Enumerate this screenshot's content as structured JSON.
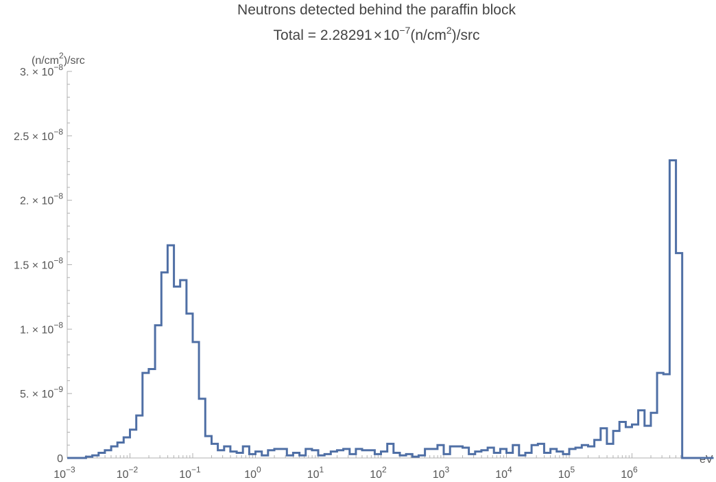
{
  "chart_data": {
    "type": "histogram",
    "title": "Neutrons detected behind the paraffin block",
    "subtitle": {
      "prefix": "Total = 2.28291",
      "times": "×",
      "base": "10",
      "exponent": "−7",
      "unit_a": "(n/cm",
      "unit_sup": "2",
      "unit_b": ")/src"
    },
    "xlabel": "eV",
    "ylabel": {
      "a": "(n/cm",
      "sup": "2",
      "b": ")/src"
    },
    "x_scale": "log",
    "xlim_log10": [
      -3,
      6.8
    ],
    "ylim": [
      0,
      3e-08
    ],
    "x_ticks": [
      {
        "base": "10",
        "exp": "−3",
        "log": -3
      },
      {
        "base": "10",
        "exp": "−2",
        "log": -2
      },
      {
        "base": "10",
        "exp": "−1",
        "log": -1
      },
      {
        "base": "10",
        "exp": "0",
        "log": 0
      },
      {
        "base": "10",
        "exp": "1",
        "log": 1
      },
      {
        "base": "10",
        "exp": "2",
        "log": 2
      },
      {
        "base": "10",
        "exp": "3",
        "log": 3
      },
      {
        "base": "10",
        "exp": "4",
        "log": 4
      },
      {
        "base": "10",
        "exp": "5",
        "log": 5
      },
      {
        "base": "10",
        "exp": "6",
        "log": 6
      }
    ],
    "y_ticks": [
      {
        "value": 0,
        "mant": "0",
        "exp": ""
      },
      {
        "value": 5e-09,
        "mant": "5. × 10",
        "exp": "−9"
      },
      {
        "value": 1e-08,
        "mant": "1. × 10",
        "exp": "−8"
      },
      {
        "value": 1.5e-08,
        "mant": "1.5 × 10",
        "exp": "−8"
      },
      {
        "value": 2e-08,
        "mant": "2. × 10",
        "exp": "−8"
      },
      {
        "value": 2.5e-08,
        "mant": "2.5 × 10",
        "exp": "−8"
      },
      {
        "value": 3e-08,
        "mant": "3. × 10",
        "exp": "−8"
      }
    ],
    "bin_width_log10": 0.1,
    "bin_start_log10": -3.0,
    "values": [
      0,
      0,
      0,
      1e-10,
      2e-10,
      4e-10,
      6e-10,
      9e-10,
      1.2e-09,
      1.6e-09,
      2.2e-09,
      3.3e-09,
      6.6e-09,
      6.9e-09,
      1.03e-08,
      1.44e-08,
      1.65e-08,
      1.33e-08,
      1.38e-08,
      1.12e-08,
      9e-09,
      4.6e-09,
      1.7e-09,
      1.1e-09,
      6e-10,
      9e-10,
      5e-10,
      4e-10,
      9e-10,
      3e-10,
      5e-10,
      2e-10,
      6e-10,
      7e-10,
      7e-10,
      2e-10,
      4e-10,
      2e-10,
      7e-10,
      6e-10,
      2e-10,
      3e-10,
      5e-10,
      6e-10,
      7e-10,
      3e-10,
      7e-10,
      6e-10,
      6e-10,
      3e-10,
      5e-10,
      1.1e-09,
      4e-10,
      2e-10,
      3e-10,
      1e-10,
      2e-10,
      7e-10,
      7e-10,
      1e-09,
      3e-10,
      9e-10,
      9e-10,
      8e-10,
      3e-10,
      5e-10,
      6e-10,
      8e-10,
      4e-10,
      7e-10,
      4e-10,
      1e-09,
      2e-10,
      4e-10,
      1e-09,
      1.1e-09,
      4e-10,
      7e-10,
      5e-10,
      3e-10,
      7e-10,
      8e-10,
      1e-09,
      9e-10,
      1.4e-09,
      2.3e-09,
      1.1e-09,
      2.1e-09,
      2.8e-09,
      2.4e-09,
      2.6e-09,
      3.7e-09,
      2.5e-09,
      3.5e-09,
      6.6e-09,
      6.5e-09,
      2.31e-08,
      1.59e-08,
      0,
      0,
      0,
      0,
      0
    ],
    "colors": {
      "series": "#4f6fa5",
      "axis": "#b0b0b0",
      "text": "#555555"
    }
  }
}
